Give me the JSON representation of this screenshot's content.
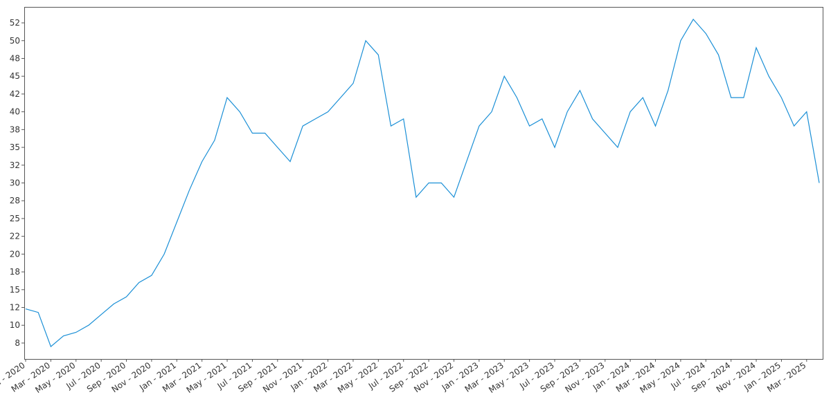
{
  "chart_data": {
    "type": "line",
    "x": [
      "2020-01",
      "2020-02",
      "2020-03",
      "2020-04",
      "2020-05",
      "2020-06",
      "2020-07",
      "2020-08",
      "2020-09",
      "2020-10",
      "2020-11",
      "2020-12",
      "2021-01",
      "2021-02",
      "2021-03",
      "2021-04",
      "2021-05",
      "2021-06",
      "2021-07",
      "2021-08",
      "2021-09",
      "2021-10",
      "2021-11",
      "2021-12",
      "2022-01",
      "2022-02",
      "2022-03",
      "2022-04",
      "2022-05",
      "2022-06",
      "2022-07",
      "2022-08",
      "2022-09",
      "2022-10",
      "2022-11",
      "2022-12",
      "2023-01",
      "2023-02",
      "2023-03",
      "2023-04",
      "2023-05",
      "2023-06",
      "2023-07",
      "2023-08",
      "2023-09",
      "2023-10",
      "2023-11",
      "2023-12",
      "2024-01",
      "2024-02",
      "2024-03",
      "2024-04",
      "2024-05",
      "2024-06",
      "2024-07",
      "2024-08",
      "2024-09",
      "2024-10",
      "2024-11",
      "2024-12",
      "2025-01",
      "2025-02",
      "2025-03",
      "2025-04"
    ],
    "series": [
      {
        "color": "#1a8fd6",
        "values": [
          12.3,
          11.8,
          7,
          8.5,
          9,
          10,
          11.5,
          13,
          14,
          16,
          17,
          20,
          24.5,
          29,
          33,
          36,
          42,
          40,
          37,
          37,
          35,
          33,
          38,
          39,
          40,
          42,
          44,
          50,
          48,
          38,
          39,
          28,
          30,
          30,
          28,
          33,
          38,
          40,
          45,
          42,
          38,
          39,
          35,
          40,
          43,
          39,
          37,
          35,
          40,
          42,
          38,
          43,
          50,
          53,
          51,
          48,
          42,
          42,
          49,
          45,
          42,
          38,
          40,
          30
        ]
      }
    ],
    "xlim": [
      "2020-01",
      "2025-04"
    ],
    "xticks": [
      {
        "value": "2020-01",
        "label": "Jan - 2020"
      },
      {
        "value": "2020-03",
        "label": "Mar - 2020"
      },
      {
        "value": "2020-05",
        "label": "May - 2020"
      },
      {
        "value": "2020-07",
        "label": "Jul - 2020"
      },
      {
        "value": "2020-09",
        "label": "Sep - 2020"
      },
      {
        "value": "2020-11",
        "label": "Nov - 2020"
      },
      {
        "value": "2021-01",
        "label": "Jan - 2021"
      },
      {
        "value": "2021-03",
        "label": "Mar - 2021"
      },
      {
        "value": "2021-05",
        "label": "May - 2021"
      },
      {
        "value": "2021-07",
        "label": "Jul - 2021"
      },
      {
        "value": "2021-09",
        "label": "Sep - 2021"
      },
      {
        "value": "2021-11",
        "label": "Nov - 2021"
      },
      {
        "value": "2022-01",
        "label": "Jan - 2022"
      },
      {
        "value": "2022-03",
        "label": "Mar - 2022"
      },
      {
        "value": "2022-05",
        "label": "May - 2022"
      },
      {
        "value": "2022-07",
        "label": "Jul - 2022"
      },
      {
        "value": "2022-09",
        "label": "Sep - 2022"
      },
      {
        "value": "2022-11",
        "label": "Nov - 2022"
      },
      {
        "value": "2023-01",
        "label": "Jan - 2023"
      },
      {
        "value": "2023-03",
        "label": "Mar - 2023"
      },
      {
        "value": "2023-05",
        "label": "May - 2023"
      },
      {
        "value": "2023-07",
        "label": "Jul - 2023"
      },
      {
        "value": "2023-09",
        "label": "Sep - 2023"
      },
      {
        "value": "2023-11",
        "label": "Nov - 2023"
      },
      {
        "value": "2024-01",
        "label": "Jan - 2024"
      },
      {
        "value": "2024-03",
        "label": "Mar - 2024"
      },
      {
        "value": "2024-05",
        "label": "May - 2024"
      },
      {
        "value": "2024-07",
        "label": "Jul - 2024"
      },
      {
        "value": "2024-09",
        "label": "Sep - 2024"
      },
      {
        "value": "2024-11",
        "label": "Nov - 2024"
      },
      {
        "value": "2025-01",
        "label": "Jan - 2025"
      },
      {
        "value": "2025-03",
        "label": "Mar - 2025"
      }
    ],
    "ylim": [
      5.26,
      54.74
    ],
    "yticks": [
      {
        "value": 7.5,
        "label": "8"
      },
      10,
      {
        "value": 12.5,
        "label": "12"
      },
      15,
      {
        "value": 17.5,
        "label": "18"
      },
      20,
      {
        "value": 22.5,
        "label": "22"
      },
      25,
      {
        "value": 27.5,
        "label": "28"
      },
      30,
      {
        "value": 32.5,
        "label": "32"
      },
      35,
      {
        "value": 37.5,
        "label": "38"
      },
      40,
      {
        "value": 42.5,
        "label": "42"
      },
      45,
      {
        "value": 47.5,
        "label": "48"
      },
      50,
      {
        "value": 52.5,
        "label": "52"
      }
    ]
  }
}
